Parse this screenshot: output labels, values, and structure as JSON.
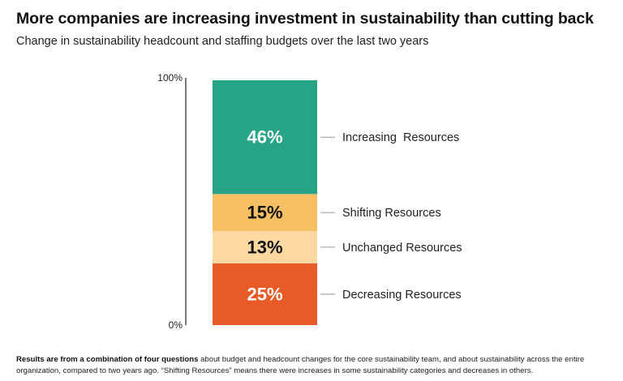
{
  "chart_data": {
    "type": "bar",
    "stacked": true,
    "title": "More companies are increasing investment in sustainability than cutting back",
    "subtitle": "Change in sustainability headcount and staffing budgets over the last two years",
    "y_ticks": [
      {
        "value": 0,
        "label": "0%"
      },
      {
        "value": 100,
        "label": "100%"
      }
    ],
    "ylim": [
      0,
      100
    ],
    "segments": [
      {
        "name": "Decreasing Resources",
        "value": 25,
        "label": "25%",
        "color": "#e85a26",
        "text_color": "#ffffff"
      },
      {
        "name": "Unchanged Resources",
        "value": 13,
        "label": "13%",
        "color": "#fcd9a1",
        "text_color": "#111111"
      },
      {
        "name": "Shifting Resources",
        "value": 15,
        "label": "15%",
        "color": "#f7c163",
        "text_color": "#111111"
      },
      {
        "name": "Increasing  Resources",
        "value": 46,
        "label": "46%",
        "color": "#27a386",
        "text_color": "#ffffff"
      }
    ]
  },
  "footnote": {
    "bold": "Results are from a combination of four questions",
    "rest": " about budget and headcount changes for the core sustainability team, and about sustainability across the entire organization, compared to two years ago. “Shifting Resources” means there were increases in some sustainability categories and decreases in others."
  }
}
